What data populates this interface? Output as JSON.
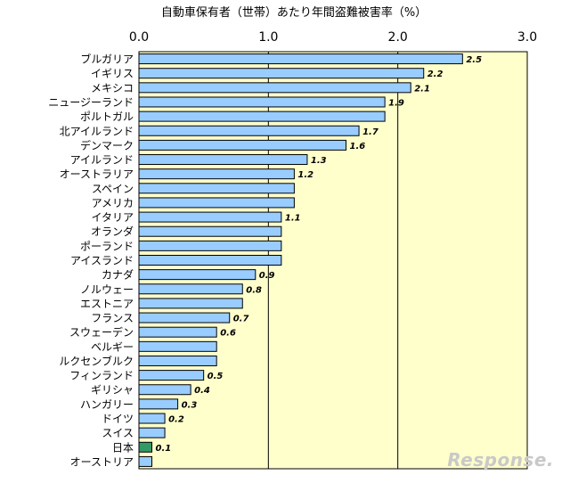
{
  "chart_data": {
    "type": "bar",
    "orientation": "horizontal",
    "title": "自動車保有者（世帯）あたり年間盗難被害率（%）",
    "xlim": [
      0,
      3.0
    ],
    "x_ticks": [
      "0.0",
      "1.0",
      "2.0",
      "3.0"
    ],
    "grid": true,
    "plot_background": "#FFFFCC",
    "bar_color": "#99CCFF",
    "highlight_color": "#339966",
    "categories": [
      "ブルガリア",
      "イギリス",
      "メキシコ",
      "ニュージーランド",
      "ポルトガル",
      "北アイルランド",
      "デンマーク",
      "アイルランド",
      "オーストラリア",
      "スペイン",
      "アメリカ",
      "イタリア",
      "オランダ",
      "ポーランド",
      "アイスランド",
      "カナダ",
      "ノルウェー",
      "エストニア",
      "フランス",
      "スウェーデン",
      "ベルギー",
      "ルクセンブルク",
      "フィンランド",
      "ギリシャ",
      "ハンガリー",
      "ドイツ",
      "スイス",
      "日本",
      "オーストリア"
    ],
    "values": [
      2.5,
      2.2,
      2.1,
      1.9,
      1.9,
      1.7,
      1.6,
      1.3,
      1.2,
      1.2,
      1.2,
      1.1,
      1.1,
      1.1,
      1.1,
      0.9,
      0.8,
      0.8,
      0.7,
      0.6,
      0.6,
      0.6,
      0.5,
      0.4,
      0.3,
      0.2,
      0.2,
      0.1,
      0.1
    ],
    "data_labels": [
      "2.5",
      "2.2",
      "2.1",
      "1.9",
      "",
      "1.7",
      "1.6",
      "1.3",
      "1.2",
      "",
      "",
      "1.1",
      "",
      "",
      "",
      "0.9",
      "0.8",
      "",
      "0.7",
      "0.6",
      "",
      "",
      "0.5",
      "0.4",
      "0.3",
      "0.2",
      "",
      "0.1",
      ""
    ],
    "highlight": [
      "日本"
    ]
  },
  "watermark": "Response."
}
